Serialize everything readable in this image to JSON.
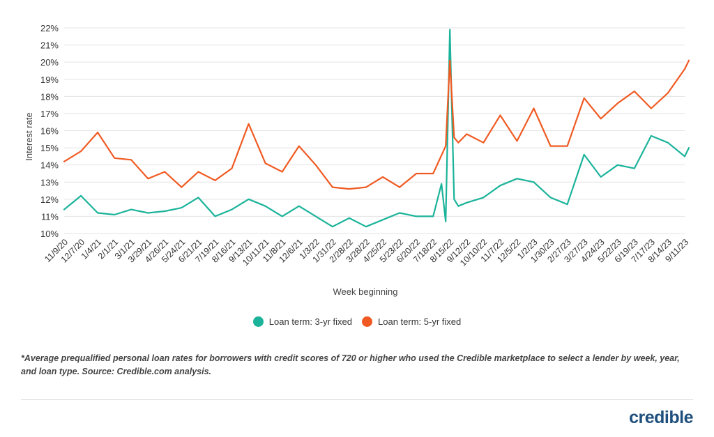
{
  "colors": {
    "three_yr": "#1bb39a",
    "five_yr": "#f05a22",
    "grid": "#e3e3e3",
    "logo": "#1e4f7d"
  },
  "legend": {
    "three_yr_label": "Loan term: 3-yr fixed",
    "five_yr_label": "Loan term: 5-yr fixed"
  },
  "footnote": "*Average prequalified personal loan rates for borrowers with credit scores of 720 or higher who used the Credible marketplace to select a lender by week, year, and loan type. Source: Credible.com analysis.",
  "brand": {
    "logo_text": "credible"
  },
  "chart_data": {
    "type": "line",
    "xlabel": "Week beginning",
    "ylabel": "Interest rate",
    "ylim": [
      10,
      22
    ],
    "y_ticks": [
      "10%",
      "11%",
      "12%",
      "13%",
      "14%",
      "15%",
      "16%",
      "17%",
      "18%",
      "19%",
      "20%",
      "21%",
      "22%"
    ],
    "x_tick_labels": [
      "11/9/20",
      "12/7/20",
      "1/4/21",
      "2/1/21",
      "3/1/21",
      "3/29/21",
      "4/26/21",
      "5/24/21",
      "6/21/21",
      "7/19/21",
      "8/16/21",
      "9/13/21",
      "10/11/21",
      "11/8/21",
      "12/6/21",
      "1/3/22",
      "1/31/22",
      "2/28/22",
      "3/28/22",
      "4/25/22",
      "5/23/22",
      "6/20/22",
      "7/18/22",
      "8/15/22",
      "9/12/22",
      "10/10/22",
      "11/7/22",
      "12/5/22",
      "1/2/23",
      "1/30/23",
      "2/27/23",
      "3/27/23",
      "4/24/23",
      "5/22/23",
      "6/19/23",
      "7/17/23",
      "8/14/23",
      "9/11/23"
    ],
    "grid": "horizontal",
    "legend_position": "bottom-center",
    "series": [
      {
        "name": "Loan term: 3-yr fixed",
        "color": "#1bb39a",
        "x": [
          "11/9/20",
          "12/7/20",
          "1/4/21",
          "2/1/21",
          "3/1/21",
          "3/29/21",
          "4/26/21",
          "5/24/21",
          "6/21/21",
          "7/19/21",
          "8/16/21",
          "9/13/21",
          "10/11/21",
          "11/8/21",
          "12/6/21",
          "1/3/22",
          "1/31/22",
          "2/28/22",
          "3/28/22",
          "4/25/22",
          "5/23/22",
          "6/20/22",
          "7/18/22",
          "8/1/22",
          "8/8/22",
          "8/15/22",
          "8/22/22",
          "8/29/22",
          "9/12/22",
          "10/10/22",
          "11/7/22",
          "12/5/22",
          "1/2/23",
          "1/30/23",
          "2/27/23",
          "3/27/23",
          "4/24/23",
          "5/22/23",
          "6/19/23",
          "7/17/23",
          "8/14/23",
          "9/11/23",
          "9/18/23"
        ],
        "y": [
          11.4,
          12.2,
          11.2,
          11.1,
          11.4,
          11.2,
          11.3,
          11.5,
          12.1,
          11.0,
          11.4,
          12.0,
          11.6,
          11.0,
          11.6,
          11.0,
          10.4,
          10.9,
          10.4,
          10.8,
          11.2,
          11.0,
          11.0,
          12.9,
          10.7,
          21.9,
          12.0,
          11.6,
          11.8,
          12.1,
          12.8,
          13.2,
          13.0,
          12.1,
          11.7,
          14.6,
          13.3,
          14.0,
          13.8,
          15.7,
          15.3,
          14.5,
          15.0
        ]
      },
      {
        "name": "Loan term: 5-yr fixed",
        "color": "#f05a22",
        "x": [
          "11/9/20",
          "12/7/20",
          "1/4/21",
          "2/1/21",
          "3/1/21",
          "3/29/21",
          "4/26/21",
          "5/24/21",
          "6/21/21",
          "7/19/21",
          "8/16/21",
          "9/13/21",
          "10/11/21",
          "11/8/21",
          "12/6/21",
          "1/3/22",
          "1/31/22",
          "2/28/22",
          "3/28/22",
          "4/25/22",
          "5/23/22",
          "6/20/22",
          "7/18/22",
          "8/8/22",
          "8/15/22",
          "8/22/22",
          "8/29/22",
          "9/12/22",
          "10/10/22",
          "11/7/22",
          "12/5/22",
          "1/2/23",
          "1/30/23",
          "2/27/23",
          "3/27/23",
          "4/24/23",
          "5/22/23",
          "6/19/23",
          "7/17/23",
          "8/14/23",
          "9/11/23",
          "9/18/23"
        ],
        "y": [
          14.2,
          14.8,
          15.9,
          14.4,
          14.3,
          13.2,
          13.6,
          12.7,
          13.6,
          13.1,
          13.8,
          16.4,
          14.1,
          13.6,
          15.1,
          14.0,
          12.7,
          12.6,
          12.7,
          13.3,
          12.7,
          13.5,
          13.5,
          15.1,
          20.1,
          15.6,
          15.3,
          15.8,
          15.3,
          16.9,
          15.4,
          17.3,
          15.1,
          15.1,
          17.9,
          16.7,
          17.6,
          18.3,
          17.3,
          18.2,
          19.6,
          20.1
        ]
      }
    ]
  }
}
